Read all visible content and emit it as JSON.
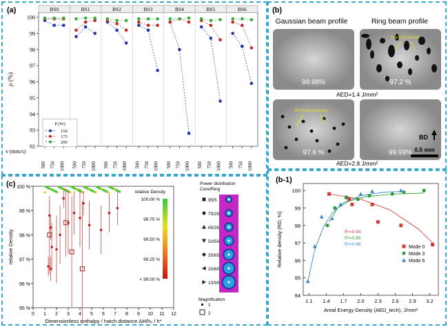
{
  "panel_a": {
    "label": "(a)",
    "ylabel": "ρ (%)",
    "xlabel": "v (mm/s)",
    "legend_title": "P (W)",
    "colors": {
      "150": "#2233aa",
      "175": "#c0282b",
      "200": "#3aaa3a"
    },
    "chart_data": {
      "type": "scatter",
      "ylim": [
        92,
        100.3
      ],
      "yticks": [
        92,
        93,
        94,
        95,
        96,
        97,
        98,
        99,
        100
      ],
      "groups": [
        "BS0",
        "BS1",
        "BS2",
        "BS3",
        "BS4",
        "BS5",
        "BS6"
      ],
      "speeds": [
        500,
        750,
        1000
      ],
      "series": [
        {
          "name": "150",
          "values": [
            [
              99.8,
              99.5,
              99.5
            ],
            [
              98.8,
              99.4,
              99.0
            ],
            [
              99.7,
              99.2,
              98.4
            ],
            [
              99.5,
              99.2,
              96.7
            ],
            [
              99.7,
              98.0,
              92.8
            ],
            [
              99.4,
              98.7,
              94.8
            ],
            [
              99.0,
              98.2,
              95.9
            ]
          ]
        },
        {
          "name": "175",
          "values": [
            [
              99.9,
              99.9,
              99.9
            ],
            [
              99.2,
              99.7,
              99.8
            ],
            [
              99.8,
              99.6,
              99.2
            ],
            [
              99.7,
              99.5,
              99.5
            ],
            [
              99.7,
              99.9,
              99.7
            ],
            [
              99.8,
              99.5,
              98.6
            ],
            [
              99.7,
              99.5,
              98.1
            ]
          ]
        },
        {
          "name": "200",
          "values": [
            [
              99.95,
              99.95,
              99.95
            ],
            [
              99.9,
              99.95,
              99.95
            ],
            [
              99.9,
              99.8,
              99.8
            ],
            [
              99.9,
              99.9,
              99.9
            ],
            [
              99.9,
              99.9,
              99.95
            ],
            [
              99.9,
              99.8,
              99.85
            ],
            [
              99.9,
              99.9,
              99.85
            ]
          ]
        }
      ]
    }
  },
  "panel_b": {
    "label": "(b)",
    "header_gauss": "Gaussian beam profile",
    "header_ring": "Ring beam profile",
    "values": [
      "99.98%",
      "97.2 %",
      "97.6 %",
      "99.99%"
    ],
    "aed1": "AED=1.4 J/mm²",
    "aed2": "AED=2.8 J/mm²",
    "lack_of_fusion": "Lack of fusion",
    "keyhole": "Keyhole porosity",
    "bd": "BD",
    "scale": "0.5 mm"
  },
  "panel_c": {
    "label": "(c)",
    "ylabel": "relative Density",
    "xlabel": "Dimensionless enthalpy / hatch distance ΔH/h₀ / h*",
    "cb_title": "relative Density",
    "cb_labels": [
      "100.00 %",
      "99.75 %",
      "99.50 %",
      "99.25 %",
      "< 99.00 %"
    ],
    "pd_title1": "Power distribution",
    "pd_title2": "Core/Ring",
    "pd_items": [
      "95/5",
      "75/25",
      "65/35",
      "50/50",
      "35/65",
      "20/80",
      "10/90"
    ],
    "mag_title": "Magnification",
    "mag_items": [
      "1",
      "2"
    ],
    "chart_data": {
      "type": "scatter",
      "xlim": [
        0,
        12
      ],
      "ylim": [
        95,
        100
      ],
      "xticks": [
        0,
        1,
        2,
        3,
        4,
        5,
        6,
        7,
        8,
        9,
        10,
        11,
        12
      ],
      "yticks": [
        95,
        96,
        97,
        98,
        99,
        100
      ],
      "points": [
        {
          "x": 1.4,
          "y": 98.8,
          "e": 0.6
        },
        {
          "x": 1.5,
          "y": 98.3,
          "e": 0.5
        },
        {
          "x": 1.6,
          "y": 97.5,
          "e": 1.0
        },
        {
          "x": 1.3,
          "y": 96.7,
          "e": 0.4
        },
        {
          "x": 1.5,
          "y": 96.6,
          "e": 0.5
        },
        {
          "x": 2.0,
          "y": 97.4,
          "e": 1.4
        },
        {
          "x": 2.3,
          "y": 98.0,
          "e": 1.2
        },
        {
          "x": 3.0,
          "y": 98.5,
          "e": 1.3
        },
        {
          "x": 3.5,
          "y": 98.9,
          "e": 0.9
        },
        {
          "x": 4.0,
          "y": 98.7,
          "e": 1.2
        },
        {
          "x": 4.8,
          "y": 98.4,
          "e": 1.0
        },
        {
          "x": 5.8,
          "y": 98.2,
          "e": 1.0
        },
        {
          "x": 6.5,
          "y": 98.9,
          "e": 0.8
        },
        {
          "x": 7.2,
          "y": 99.1,
          "e": 0.7
        },
        {
          "x": 2.6,
          "y": 99.5,
          "e": 0.4
        },
        {
          "x": 4.3,
          "y": 99.3,
          "e": 0.5
        }
      ],
      "squares": [
        {
          "x": 1.4,
          "y": 98.0,
          "e": 1.6
        },
        {
          "x": 2.8,
          "y": 98.5,
          "e": 1.4
        },
        {
          "x": 3.3,
          "y": 97.3,
          "e": 2.3
        },
        {
          "x": 4.2,
          "y": 96.6,
          "e": 2.8
        }
      ],
      "top_cluster_xrange": [
        1.0,
        7.5
      ]
    }
  },
  "panel_b1": {
    "label": "(b-1)",
    "ylabel": "Relative density (RD, %)",
    "xlabel": "Areal Energy Density (AED_tech), J/mm²",
    "r2": [
      {
        "text": "R²=0.94",
        "color": "#d23a3a"
      },
      {
        "text": "R²=0.85",
        "color": "#2e9a3a"
      },
      {
        "text": "R²=0.96",
        "color": "#3a88c8"
      }
    ],
    "chart_data": {
      "type": "scatter",
      "xlim": [
        1.0,
        3.35
      ],
      "ylim": [
        94,
        100.4
      ],
      "xticks": [
        1.1,
        1.4,
        1.7,
        2.0,
        2.3,
        2.6,
        2.9,
        3.2
      ],
      "yticks": [
        94,
        95,
        96,
        97,
        98,
        99,
        100
      ],
      "series": [
        {
          "name": "Mode 0",
          "color": "#d23a3a",
          "marker": "square",
          "x": [
            1.45,
            1.75,
            1.8,
            1.85,
            2.2,
            2.3,
            2.7,
            3.25
          ],
          "y": [
            99.8,
            99.6,
            99.5,
            99.2,
            99.2,
            98.2,
            98.0,
            96.9
          ]
        },
        {
          "name": "Mode 3",
          "color": "#2e9a3a",
          "marker": "circle",
          "x": [
            1.42,
            1.55,
            1.75,
            1.95,
            2.15,
            2.55,
            2.75,
            3.1
          ],
          "y": [
            98.0,
            99.0,
            99.6,
            99.5,
            99.7,
            99.8,
            99.9,
            100.0
          ]
        },
        {
          "name": "Mode 6",
          "color": "#3a88c8",
          "marker": "triangle",
          "x": [
            1.08,
            1.2,
            1.32,
            1.5,
            1.65,
            2.0,
            2.2,
            2.7
          ],
          "y": [
            94.8,
            96.8,
            98.5,
            98.4,
            99.2,
            99.8,
            99.95,
            100.0
          ]
        }
      ]
    }
  }
}
